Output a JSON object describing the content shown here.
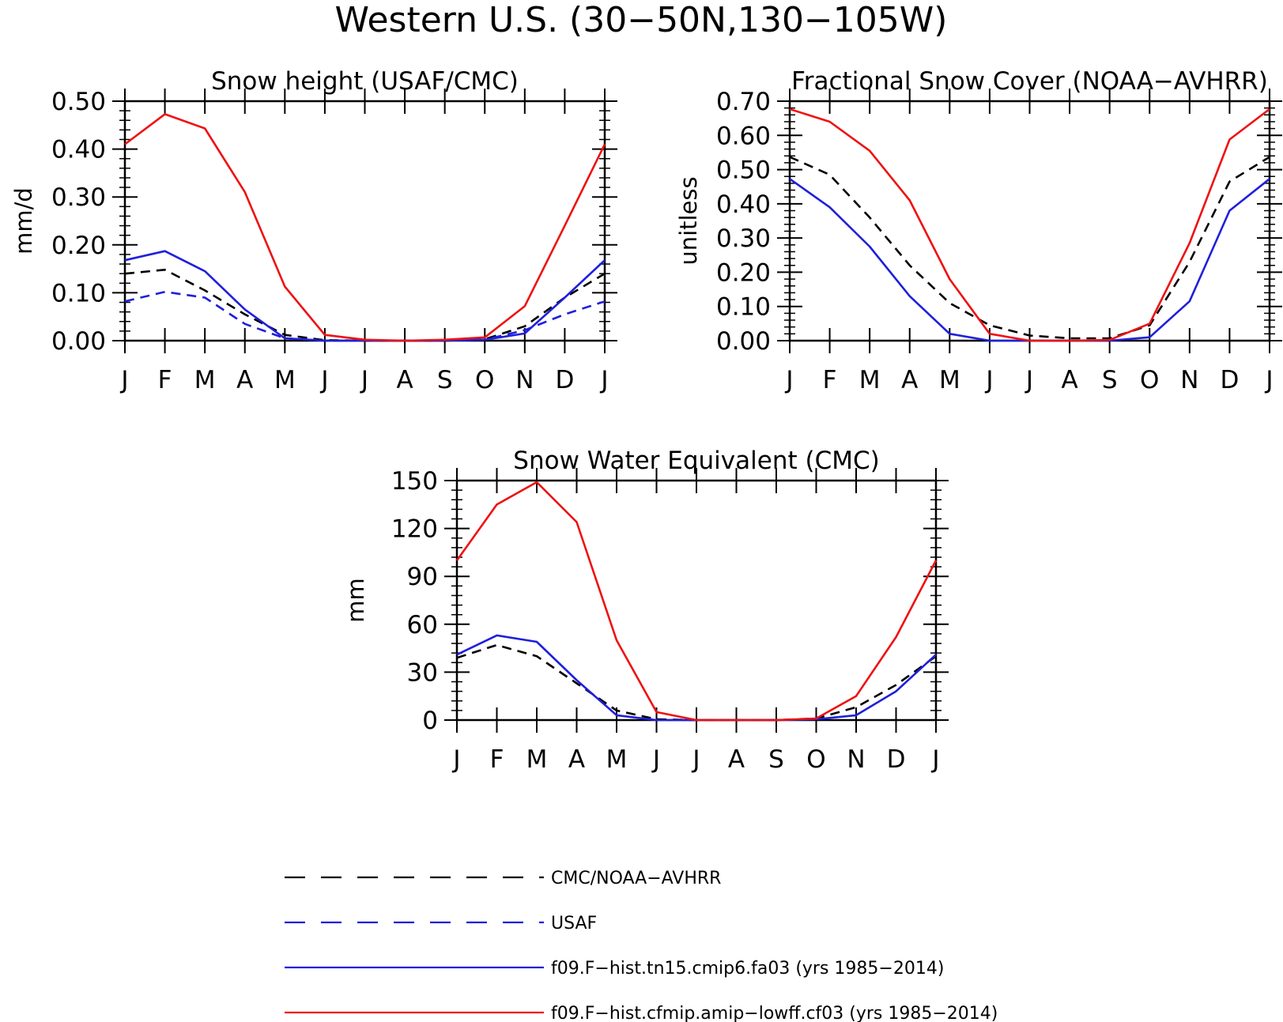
{
  "figure_title": "Western U.S. (30−50N,130−105W)",
  "colors": {
    "obs": "#000000",
    "usaf": "#1f1fdc",
    "model_a": "#1f1fdc",
    "model_b": "#ee1111"
  },
  "legend": [
    {
      "label": "CMC/NOAA−AVHRR",
      "color": "#000000",
      "style": "dashed"
    },
    {
      "label": "USAF",
      "color": "#1f1fdc",
      "style": "dashed"
    },
    {
      "label": "f09.F−hist.tn15.cmip6.fa03 (yrs 1985−2014)",
      "color": "#1f1fdc",
      "style": "solid"
    },
    {
      "label": "f09.F−hist.cfmip.amip−lowff.cf03 (yrs 1985−2014)",
      "color": "#ee1111",
      "style": "solid"
    }
  ],
  "chart_data": [
    {
      "type": "line",
      "title": "Snow height (USAF/CMC)",
      "xlabel": "",
      "ylabel": "mm/d",
      "categories": [
        "J",
        "F",
        "M",
        "A",
        "M",
        "J",
        "J",
        "A",
        "S",
        "O",
        "N",
        "D",
        "J"
      ],
      "ylim": [
        0,
        0.5
      ],
      "yticks": [
        "0.00",
        "0.10",
        "0.20",
        "0.30",
        "0.40",
        "0.50"
      ],
      "grid": false,
      "series": [
        {
          "values": [
            0.14,
            0.148,
            0.105,
            0.055,
            0.012,
            0.001,
            0.0,
            0.0,
            0.0,
            0.003,
            0.03,
            0.09,
            0.14
          ],
          "color": "#000000",
          "style": "dashed"
        },
        {
          "values": [
            0.082,
            0.102,
            0.09,
            0.035,
            0.005,
            0.0,
            0.0,
            0.0,
            0.0,
            0.002,
            0.022,
            0.055,
            0.082
          ],
          "color": "#1f1fdc",
          "style": "dashed"
        },
        {
          "values": [
            0.168,
            0.187,
            0.145,
            0.065,
            0.005,
            0.0,
            0.0,
            0.0,
            0.0,
            0.002,
            0.015,
            0.09,
            0.168
          ],
          "color": "#1f1fdc",
          "style": "solid"
        },
        {
          "values": [
            0.41,
            0.473,
            0.443,
            0.31,
            0.113,
            0.012,
            0.002,
            0.0,
            0.002,
            0.007,
            0.072,
            0.24,
            0.41
          ],
          "color": "#ee1111",
          "style": "solid"
        }
      ]
    },
    {
      "type": "line",
      "title": "Fractional Snow Cover (NOAA−AVHRR)",
      "xlabel": "",
      "ylabel": "unitless",
      "categories": [
        "J",
        "F",
        "M",
        "A",
        "M",
        "J",
        "J",
        "A",
        "S",
        "O",
        "N",
        "D",
        "J"
      ],
      "ylim": [
        0,
        0.7
      ],
      "yticks": [
        "0.00",
        "0.10",
        "0.20",
        "0.30",
        "0.40",
        "0.50",
        "0.60",
        "0.70"
      ],
      "grid": false,
      "series": [
        {
          "values": [
            0.537,
            0.485,
            0.36,
            0.22,
            0.11,
            0.045,
            0.015,
            0.007,
            0.007,
            0.045,
            0.23,
            0.465,
            0.537
          ],
          "color": "#000000",
          "style": "dashed"
        },
        {
          "values": [
            0.473,
            0.39,
            0.275,
            0.13,
            0.02,
            0.0,
            0.0,
            0.0,
            0.0,
            0.01,
            0.115,
            0.38,
            0.473
          ],
          "color": "#1f1fdc",
          "style": "solid"
        },
        {
          "values": [
            0.677,
            0.64,
            0.555,
            0.41,
            0.18,
            0.02,
            0.0,
            0.0,
            0.002,
            0.05,
            0.285,
            0.588,
            0.677
          ],
          "color": "#ee1111",
          "style": "solid"
        }
      ]
    },
    {
      "type": "line",
      "title": "Snow Water Equivalent (CMC)",
      "xlabel": "",
      "ylabel": "mm",
      "categories": [
        "J",
        "F",
        "M",
        "A",
        "M",
        "J",
        "J",
        "A",
        "S",
        "O",
        "N",
        "D",
        "J"
      ],
      "ylim": [
        0,
        150
      ],
      "yticks": [
        "0",
        "30",
        "60",
        "90",
        "120",
        "150"
      ],
      "grid": false,
      "series": [
        {
          "values": [
            39,
            47,
            40,
            23,
            6,
            0.5,
            0,
            0,
            0,
            1,
            8,
            22,
            40
          ],
          "color": "#000000",
          "style": "dashed"
        },
        {
          "values": [
            41,
            53,
            49,
            25,
            3,
            0,
            0,
            0,
            0,
            0.5,
            3,
            18,
            41
          ],
          "color": "#1f1fdc",
          "style": "solid"
        },
        {
          "values": [
            100,
            135,
            149,
            124,
            50,
            5,
            0,
            0,
            0,
            1,
            15,
            52,
            100
          ],
          "color": "#ee1111",
          "style": "solid"
        }
      ]
    }
  ]
}
